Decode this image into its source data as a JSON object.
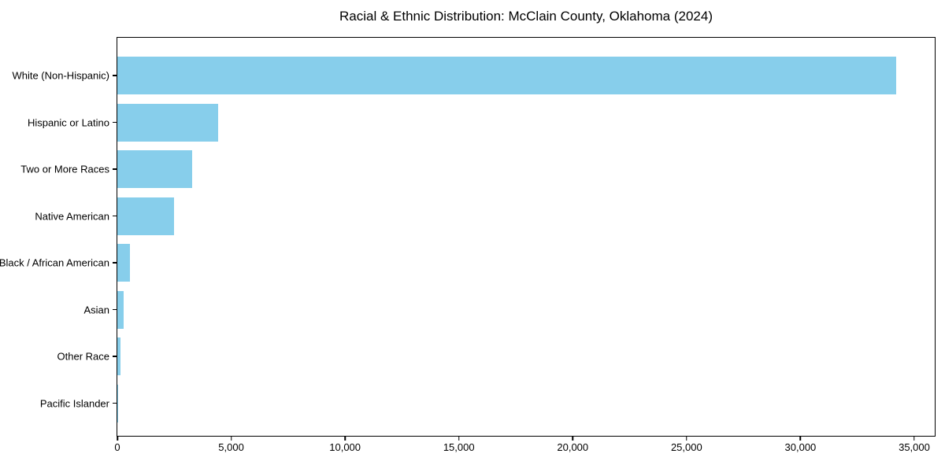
{
  "chart_data": {
    "type": "bar",
    "orientation": "horizontal",
    "title": "Racial & Ethnic Distribution: McClain County, Oklahoma (2024)",
    "categories": [
      "White (Non-Hispanic)",
      "Hispanic or Latino",
      "Two or More Races",
      "Native American",
      "Black / African American",
      "Asian",
      "Other Race",
      "Pacific Islander"
    ],
    "values": [
      34200,
      4430,
      3290,
      2490,
      550,
      290,
      130,
      25
    ],
    "xlabel": "",
    "ylabel": "",
    "xlim": [
      0,
      35900
    ],
    "xticks": [
      0,
      5000,
      10000,
      15000,
      20000,
      25000,
      30000,
      35000
    ],
    "xtick_labels": [
      "0",
      "5,000",
      "10,000",
      "15,000",
      "20,000",
      "25,000",
      "30,000",
      "35,000"
    ],
    "bar_color": "#87CEEB",
    "frame_color": "#000000",
    "background_color": "#ffffff",
    "grid": false,
    "legend": null
  }
}
